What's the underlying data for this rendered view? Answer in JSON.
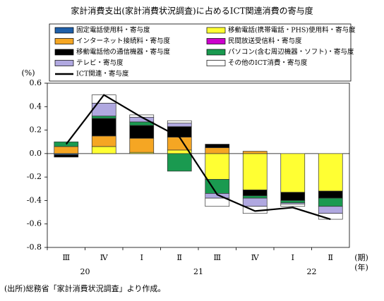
{
  "chart_data": {
    "type": "stacked_bar_line",
    "title": "家計消費支出(家計消費状況調査)に占めるICT関連消費の寄与度",
    "y_label": "(%)",
    "x_label_period": "(期)",
    "x_label_year": "(年)",
    "categories": [
      "Ⅲ",
      "Ⅳ",
      "Ⅰ",
      "Ⅱ",
      "Ⅲ",
      "Ⅳ",
      "Ⅰ",
      "Ⅱ"
    ],
    "years": [
      "20",
      "21",
      "22"
    ],
    "ylim": [
      -0.8,
      0.6
    ],
    "yticks": [
      -0.8,
      -0.6,
      -0.4,
      -0.2,
      {
        "value": 0,
        "label": "0.0"
      },
      0.2,
      0.4,
      0.6
    ],
    "series": [
      {
        "name": "固定電話使用料・寄与度",
        "color": "#1f5fa8",
        "values": [
          -0.01,
          0,
          0,
          0,
          0,
          0,
          0,
          0
        ]
      },
      {
        "name": "移動電話(携帯電話・PHS)使用料・寄与度",
        "color": "#ffff33",
        "values": [
          0,
          0.06,
          0.01,
          0.03,
          -0.22,
          -0.31,
          -0.33,
          -0.32
        ]
      },
      {
        "name": "インターネット接続料・寄与度",
        "color": "#f5a623",
        "values": [
          0.06,
          0.09,
          0.12,
          0.11,
          0.05,
          0.02,
          0,
          0
        ]
      },
      {
        "name": "民間放送受信料・寄与度",
        "color": "#cc00cc",
        "values": [
          0,
          0,
          0,
          0,
          0,
          0,
          0,
          0
        ]
      },
      {
        "name": "移動電話他の通信機器・寄与度",
        "color": "#000000",
        "values": [
          -0.02,
          0.15,
          0.11,
          0.09,
          0.03,
          -0.05,
          -0.07,
          -0.06
        ]
      },
      {
        "name": "パソコン(含む周辺機器・ソフト)・寄与度",
        "color": "#1a9a50",
        "values": [
          0.04,
          0.02,
          0.03,
          -0.15,
          -0.12,
          -0.02,
          -0.02,
          -0.07
        ]
      },
      {
        "name": "テレビ・寄与度",
        "color": "#b0a8e0",
        "values": [
          0,
          0.11,
          0.04,
          0.03,
          -0.04,
          -0.07,
          -0.01,
          -0.06
        ]
      },
      {
        "name": "その他のICT消費・寄与度",
        "color": "#ffffff",
        "values": [
          0,
          0.07,
          0.02,
          0.02,
          -0.07,
          -0.06,
          -0.02,
          -0.05
        ]
      }
    ],
    "line": {
      "name": "ICT関連・寄与度",
      "color": "#000000",
      "values": [
        0.08,
        0.5,
        0.31,
        0.14,
        -0.35,
        -0.49,
        -0.46,
        -0.56
      ]
    },
    "note": "(出所)総務省「家計消費状況調査」より作成。"
  }
}
